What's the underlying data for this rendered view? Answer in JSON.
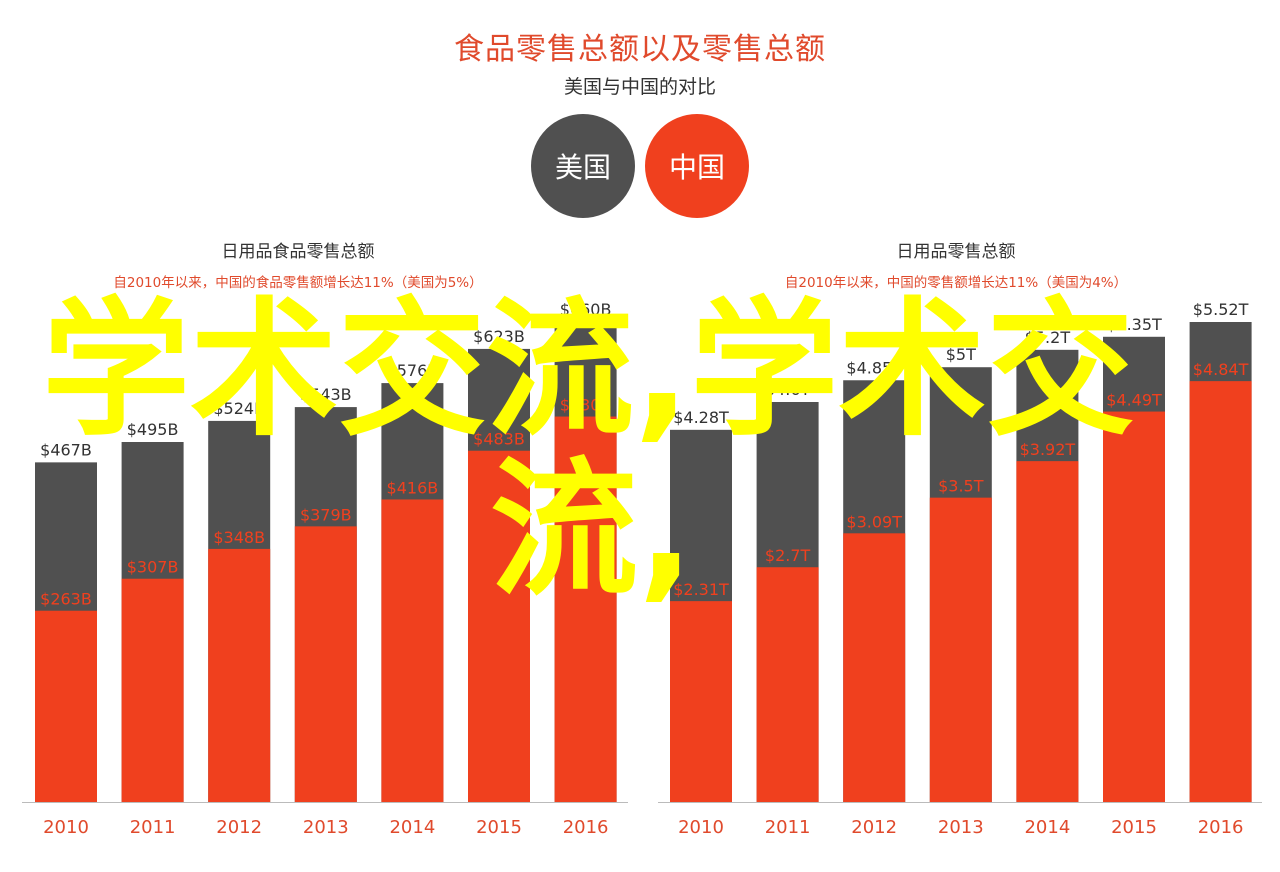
{
  "title": "食品零售总额以及零售总额",
  "subtitle": "美国与中国的对比",
  "legend": [
    {
      "label": "美国",
      "color": "#505050"
    },
    {
      "label": "中国",
      "color": "#f0401e"
    }
  ],
  "watermark": {
    "line1": "学术交流,学术交",
    "line2": "流,"
  },
  "colors": {
    "us": "#505050",
    "cn": "#f0401e",
    "axis_label": "#e04a2c",
    "axis_line": "#bbbbbb"
  },
  "chart_data": [
    {
      "type": "bar",
      "title": "日用品食品零售总额",
      "subtitle": "自2010年以来，中国的食品零售额增长达11%（美国为5%）",
      "categories": [
        "2010",
        "2011",
        "2012",
        "2013",
        "2014",
        "2015",
        "2016"
      ],
      "series": [
        {
          "name": "美国",
          "values": [
            467,
            495,
            524,
            543,
            576,
            623,
            660
          ],
          "labels": [
            "$467B",
            "$495B",
            "$524B",
            "$543B",
            "$576B",
            "$623B",
            "$660B"
          ]
        },
        {
          "name": "中国",
          "values": [
            263,
            307,
            348,
            379,
            416,
            483,
            530
          ],
          "labels": [
            "$263B",
            "$307B",
            "$348B",
            "$379B",
            "$416B",
            "$483B",
            "$530B"
          ]
        }
      ],
      "ylim": [
        0,
        660
      ]
    },
    {
      "type": "bar",
      "title": "日用品零售总额",
      "subtitle": "自2010年以来，中国的零售额增长达11%（美国为4%）",
      "categories": [
        "2010",
        "2011",
        "2012",
        "2013",
        "2014",
        "2015",
        "2016"
      ],
      "series": [
        {
          "name": "美国",
          "values": [
            4.28,
            4.6,
            4.85,
            5.0,
            5.2,
            5.35,
            5.52
          ],
          "labels": [
            "$4.28T",
            "$4.6T",
            "$4.85T",
            "$5T",
            "$5.2T",
            "$5.35T",
            "$5.52T"
          ]
        },
        {
          "name": "中国",
          "values": [
            2.31,
            2.7,
            3.09,
            3.5,
            3.92,
            4.49,
            4.84
          ],
          "labels": [
            "$2.31T",
            "$2.7T",
            "$3.09T",
            "$3.5T",
            "$3.92T",
            "$4.49T",
            "$4.84T"
          ]
        }
      ],
      "ylim": [
        0,
        5.52
      ]
    }
  ]
}
